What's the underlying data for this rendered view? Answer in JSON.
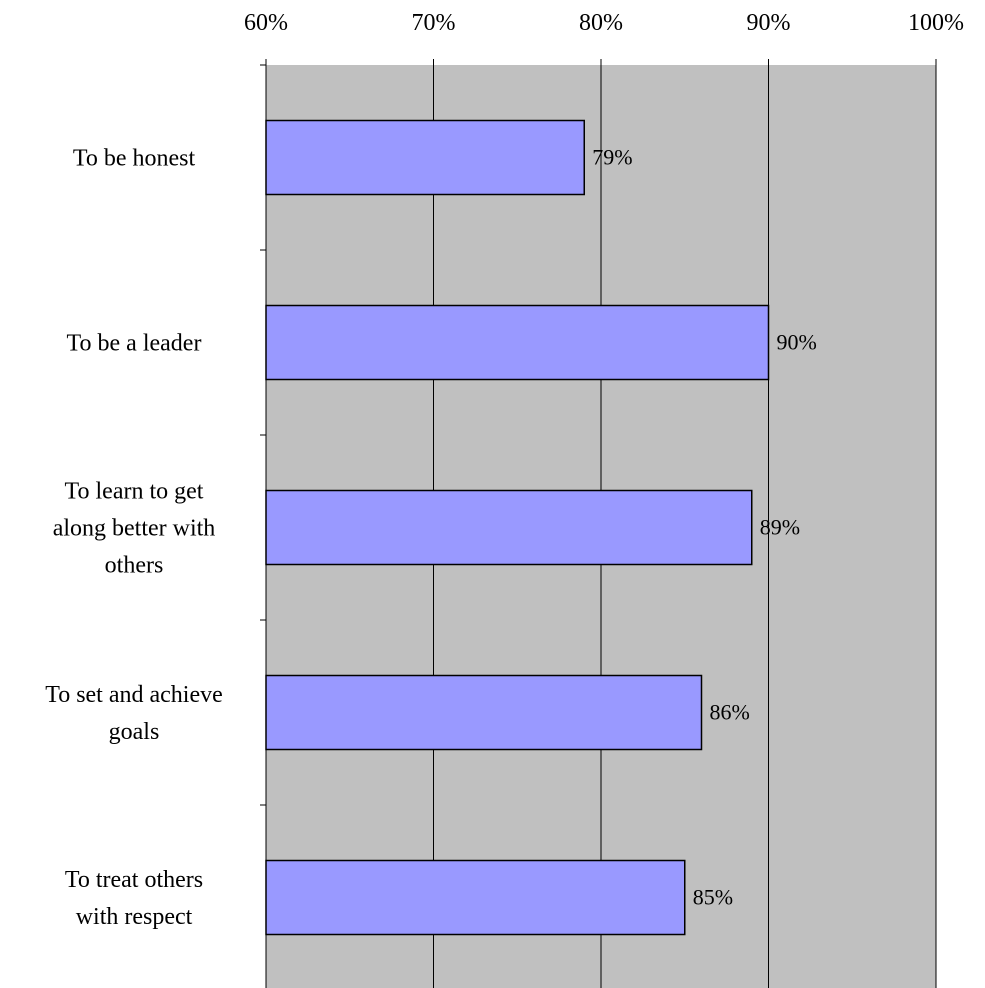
{
  "chart_data": {
    "type": "bar",
    "orientation": "horizontal",
    "categories": [
      [
        "To be honest"
      ],
      [
        "To be a leader"
      ],
      [
        "To learn to get",
        "along better with",
        "others"
      ],
      [
        "To set and achieve",
        "goals"
      ],
      [
        "To treat others",
        "with respect"
      ]
    ],
    "values": [
      79,
      90,
      89,
      86,
      85
    ],
    "data_labels": [
      "79%",
      "90%",
      "89%",
      "86%",
      "85%"
    ],
    "xlim": [
      60,
      100
    ],
    "xticks": [
      60,
      70,
      80,
      90,
      100
    ],
    "xtick_labels": [
      "60%",
      "70%",
      "80%",
      "90%",
      "100%"
    ],
    "x_axis_position": "top",
    "grid": true,
    "legend": "none",
    "title": "",
    "xlabel": "",
    "ylabel": "",
    "colors": {
      "bar_fill": "#9999ff",
      "bar_stroke": "#000000",
      "plot_background": "#c0c0c0",
      "grid": "#000000"
    }
  }
}
